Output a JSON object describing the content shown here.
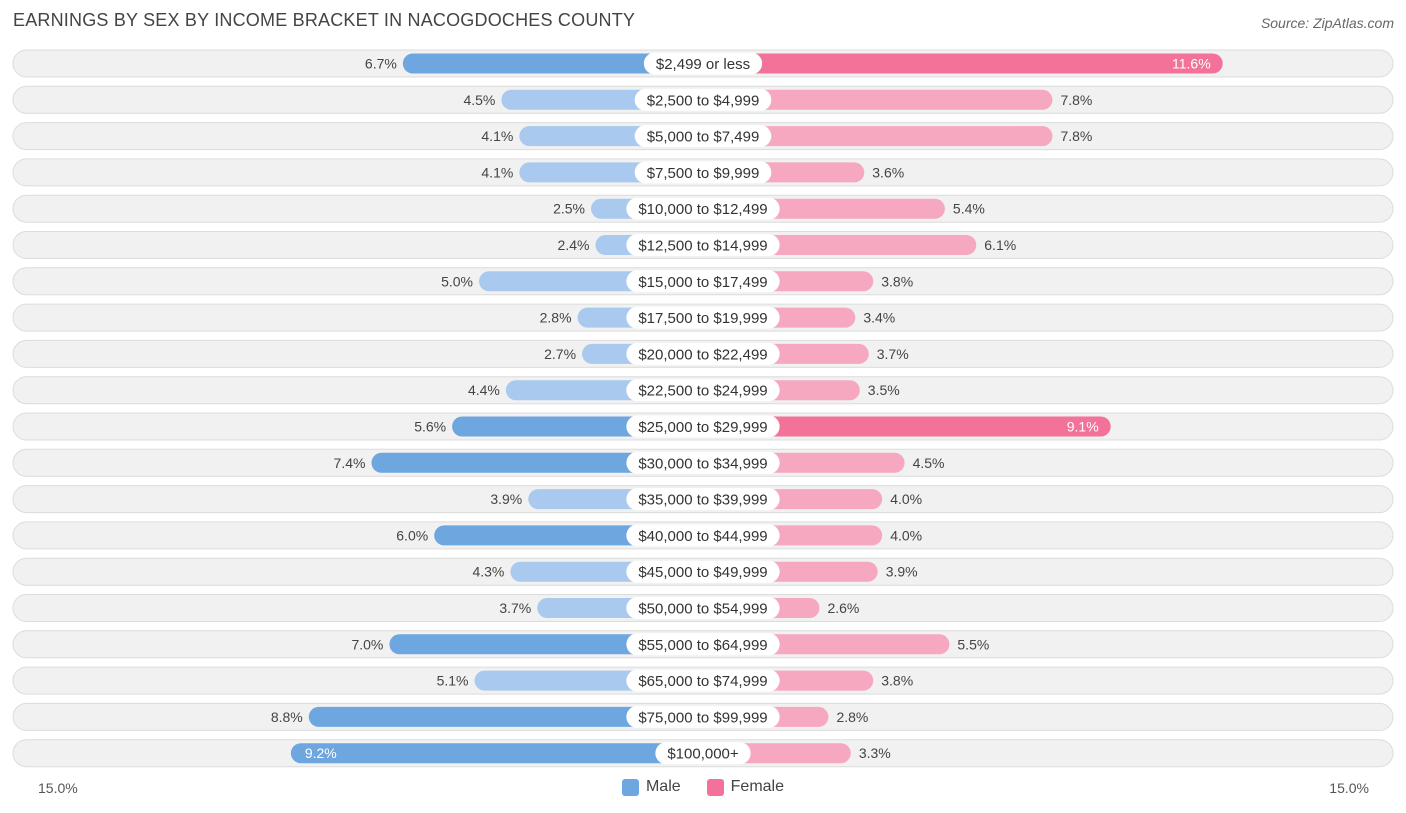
{
  "header": {
    "title": "EARNINGS BY SEX BY INCOME BRACKET IN NACOGDOCHES COUNTY",
    "source": "Source: ZipAtlas.com"
  },
  "axis": {
    "left_label": "15.0%",
    "right_label": "15.0%"
  },
  "legend": {
    "male": "Male",
    "female": "Female"
  },
  "colors": {
    "male_strong": "#6ea6df",
    "male_light": "#a9c9ee",
    "female_strong": "#f27299",
    "female_light": "#f6a8c0"
  },
  "chart_data": {
    "type": "bar",
    "orientation": "horizontal-diverging",
    "title": "EARNINGS BY SEX BY INCOME BRACKET IN NACOGDOCHES COUNTY",
    "xlim": [
      -15.0,
      15.0
    ],
    "unit": "%",
    "categories": [
      "$2,499 or less",
      "$2,500 to $4,999",
      "$5,000 to $7,499",
      "$7,500 to $9,999",
      "$10,000 to $12,499",
      "$12,500 to $14,999",
      "$15,000 to $17,499",
      "$17,500 to $19,999",
      "$20,000 to $22,499",
      "$22,500 to $24,999",
      "$25,000 to $29,999",
      "$30,000 to $34,999",
      "$35,000 to $39,999",
      "$40,000 to $44,999",
      "$45,000 to $49,999",
      "$50,000 to $54,999",
      "$55,000 to $64,999",
      "$65,000 to $74,999",
      "$75,000 to $99,999",
      "$100,000+"
    ],
    "series": [
      {
        "name": "Male",
        "values": [
          6.7,
          4.5,
          4.1,
          4.1,
          2.5,
          2.4,
          5.0,
          2.8,
          2.7,
          4.4,
          5.6,
          7.4,
          3.9,
          6.0,
          4.3,
          3.7,
          7.0,
          5.1,
          8.8,
          9.2
        ],
        "labels": [
          "6.7%",
          "4.5%",
          "4.1%",
          "4.1%",
          "2.5%",
          "2.4%",
          "5.0%",
          "2.8%",
          "2.7%",
          "4.4%",
          "5.6%",
          "7.4%",
          "3.9%",
          "6.0%",
          "4.3%",
          "3.7%",
          "7.0%",
          "5.1%",
          "8.8%",
          "9.2%"
        ]
      },
      {
        "name": "Female",
        "values": [
          11.6,
          7.8,
          7.8,
          3.6,
          5.4,
          6.1,
          3.8,
          3.4,
          3.7,
          3.5,
          9.1,
          4.5,
          4.0,
          4.0,
          3.9,
          2.6,
          5.5,
          3.8,
          2.8,
          3.3
        ],
        "labels": [
          "11.6%",
          "7.8%",
          "7.8%",
          "3.6%",
          "5.4%",
          "6.1%",
          "3.8%",
          "3.4%",
          "3.7%",
          "3.5%",
          "9.1%",
          "4.5%",
          "4.0%",
          "4.0%",
          "3.9%",
          "2.6%",
          "5.5%",
          "3.8%",
          "2.8%",
          "3.3%"
        ]
      }
    ]
  }
}
